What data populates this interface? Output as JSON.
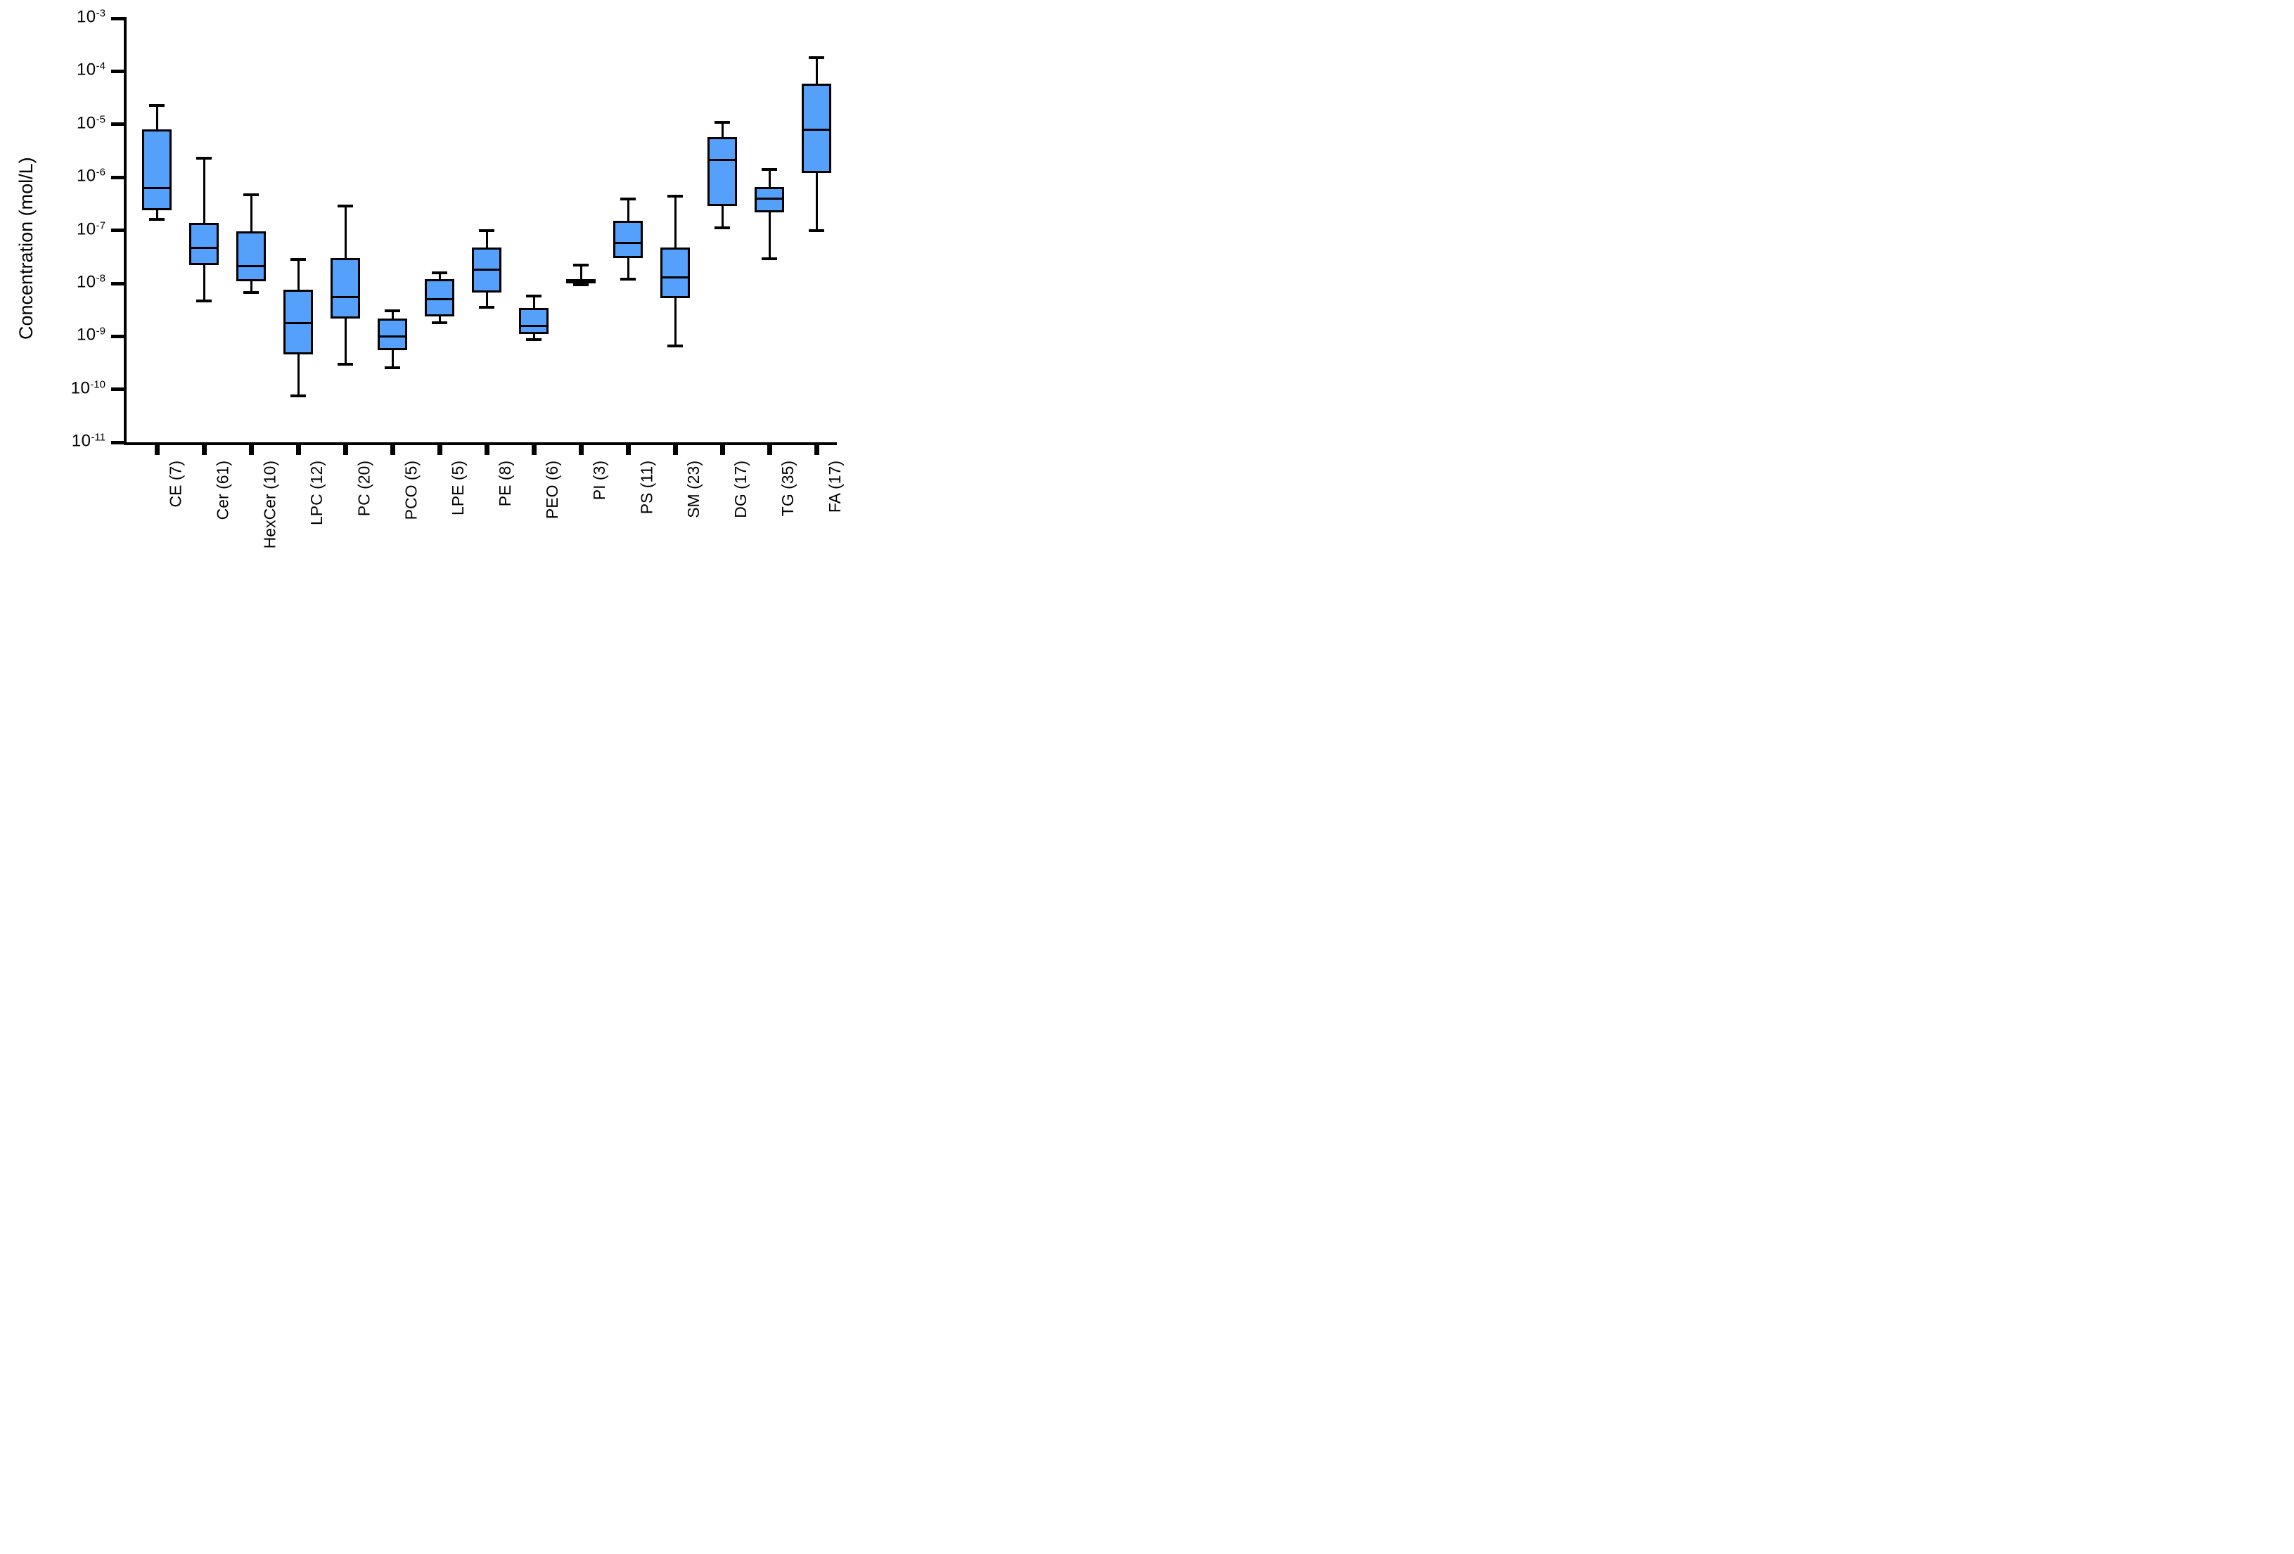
{
  "figure": {
    "y_axis_title": "Concentration  (mol/L)",
    "background_color": "#ffffff",
    "box_fill_color": "#55A0FA",
    "line_color": "#000000"
  },
  "chart_data": {
    "type": "box",
    "title": "",
    "xlabel": "",
    "ylabel": "Concentration  (mol/L)",
    "y_scale": "log10",
    "tick_base": "10",
    "y_tick_exponents": [
      -3,
      -4,
      -5,
      -6,
      -7,
      -8,
      -9,
      -10,
      -11
    ],
    "ylim": [
      1e-11,
      0.001
    ],
    "grid": false,
    "legend": "none",
    "categories": [
      "CE (7)",
      "Cer (61)",
      "HexCer (10)",
      "LPC (12)",
      "PC (20)",
      "PCO (5)",
      "LPE (5)",
      "PE (8)",
      "PEO (6)",
      "PI (3)",
      "PS (11)",
      "SM (23)",
      "DG (17)",
      "TG (35)",
      "FA (17)"
    ],
    "series": [
      {
        "label": "CE",
        "n": 7,
        "min": 1.6e-07,
        "q1": 2.4e-07,
        "median": 6.2e-07,
        "q3": 8e-06,
        "max": 2.3e-05
      },
      {
        "label": "Cer",
        "n": 61,
        "min": 4.7e-09,
        "q1": 2.2e-08,
        "median": 4.7e-08,
        "q3": 1.4e-07,
        "max": 2.3e-06
      },
      {
        "label": "HexCer",
        "n": 10,
        "min": 6.8e-09,
        "q1": 1.1e-08,
        "median": 2.1e-08,
        "q3": 9.5e-08,
        "max": 4.7e-07
      },
      {
        "label": "LPC",
        "n": 12,
        "min": 7.6e-11,
        "q1": 4.6e-10,
        "median": 1.8e-09,
        "q3": 7.5e-09,
        "max": 2.8e-08
      },
      {
        "label": "PC",
        "n": 20,
        "min": 3e-10,
        "q1": 2.2e-09,
        "median": 5.5e-09,
        "q3": 3e-08,
        "max": 2.9e-07
      },
      {
        "label": "PCO",
        "n": 5,
        "min": 2.6e-10,
        "q1": 5.5e-10,
        "median": 1e-09,
        "q3": 2.2e-09,
        "max": 3e-09
      },
      {
        "label": "LPE",
        "n": 5,
        "min": 1.8e-09,
        "q1": 2.4e-09,
        "median": 5e-09,
        "q3": 1.2e-08,
        "max": 1.6e-08
      },
      {
        "label": "PE",
        "n": 8,
        "min": 3.5e-09,
        "q1": 6.8e-09,
        "median": 1.8e-08,
        "q3": 4.8e-08,
        "max": 1e-07
      },
      {
        "label": "PEO",
        "n": 6,
        "min": 8.8e-10,
        "q1": 1.1e-09,
        "median": 1.6e-09,
        "q3": 3.4e-09,
        "max": 5.8e-09
      },
      {
        "label": "PI",
        "n": 3,
        "min": 9.5e-09,
        "q1": 1e-08,
        "median": 1.1e-08,
        "q3": 1.2e-08,
        "max": 2.2e-08
      },
      {
        "label": "PS",
        "n": 11,
        "min": 1.2e-08,
        "q1": 3e-08,
        "median": 5.8e-08,
        "q3": 1.5e-07,
        "max": 3.9e-07
      },
      {
        "label": "SM",
        "n": 23,
        "min": 6.7e-10,
        "q1": 5.3e-09,
        "median": 1.3e-08,
        "q3": 4.7e-08,
        "max": 4.4e-07
      },
      {
        "label": "DG",
        "n": 17,
        "min": 1.1e-07,
        "q1": 2.9e-07,
        "median": 2.1e-06,
        "q3": 5.7e-06,
        "max": 1.1e-05
      },
      {
        "label": "TG",
        "n": 35,
        "min": 2.9e-08,
        "q1": 2.2e-07,
        "median": 4e-07,
        "q3": 6.5e-07,
        "max": 1.4e-06
      },
      {
        "label": "FA",
        "n": 17,
        "min": 1e-07,
        "q1": 1.2e-06,
        "median": 8e-06,
        "q3": 5.9e-05,
        "max": 0.00018
      }
    ]
  },
  "layout_note": "whisker-box plot, black axes, outward ticks, x labels rotated 90deg"
}
